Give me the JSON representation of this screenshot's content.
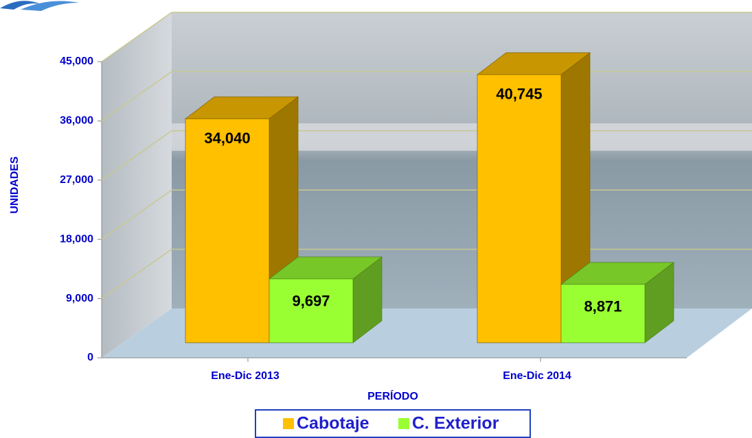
{
  "chart_data": {
    "type": "bar3d",
    "categories": [
      "Ene-Dic 2013",
      "Ene-Dic 2014"
    ],
    "series": [
      {
        "name": "Cabotaje",
        "color": "#ffc000",
        "values": [
          34040,
          40745
        ],
        "value_labels": [
          "34,040",
          "40,745"
        ]
      },
      {
        "name": "C. Exterior",
        "color": "#99ff33",
        "values": [
          9697,
          8871
        ],
        "value_labels": [
          "9,697",
          "8,871"
        ]
      }
    ],
    "ylim": [
      0,
      45000
    ],
    "yticks": [
      0,
      {
        "value": 9000,
        "label": "9,000"
      },
      {
        "value": 18000,
        "label": "18,000"
      },
      {
        "value": 27000,
        "label": "27,000"
      },
      {
        "value": 36000,
        "label": "36,000"
      },
      {
        "value": 45000,
        "label": "45,000"
      }
    ],
    "ylabel": "UNIDADES",
    "xlabel": "PERÍODO",
    "grid": true,
    "legend": "bottom"
  }
}
